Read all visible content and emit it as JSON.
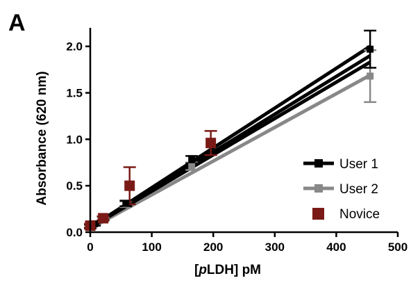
{
  "panel_label": "A",
  "chart_data": {
    "type": "line",
    "xlabel_prefix": "[",
    "xlabel_italic": "p",
    "xlabel_suffix": "LDH] pM",
    "ylabel": "Absorbance (620 nm)",
    "xlim": [
      0,
      500
    ],
    "ylim": [
      0,
      2.2
    ],
    "xticks": [
      0,
      100,
      200,
      300,
      400,
      500
    ],
    "xtick_labels": [
      "0",
      "100",
      "200",
      "300",
      "400",
      "500"
    ],
    "yticks": [
      0.0,
      0.5,
      1.0,
      1.5,
      2.0
    ],
    "ytick_labels": [
      "0.0",
      "0.5",
      "1.0",
      "1.5",
      "2.0"
    ],
    "grid": false,
    "legend_position": "bottom-right",
    "series": [
      {
        "name": "User 1",
        "color": "#000000",
        "marker": "square",
        "points": [
          {
            "x": 0,
            "y": 0.06,
            "err": 0.02
          },
          {
            "x": 7,
            "y": 0.09,
            "err": 0.02
          },
          {
            "x": 21,
            "y": 0.15,
            "err": 0.02
          },
          {
            "x": 58,
            "y": 0.31,
            "err": 0.03
          },
          {
            "x": 165,
            "y": 0.78,
            "err": 0.04
          },
          {
            "x": 455,
            "y": 1.97,
            "err": 0.2
          }
        ],
        "fit_lines": [
          {
            "x0": 0,
            "y0": 0.05,
            "x1": 455,
            "y1": 2.0
          },
          {
            "x0": 0,
            "y0": 0.05,
            "x1": 455,
            "y1": 1.9
          },
          {
            "x0": 0,
            "y0": 0.05,
            "x1": 455,
            "y1": 1.83
          }
        ]
      },
      {
        "name": "User 2",
        "color": "#888888",
        "marker": "square",
        "points": [
          {
            "x": 0,
            "y": 0.07,
            "err": 0.02
          },
          {
            "x": 21,
            "y": 0.14,
            "err": 0.02
          },
          {
            "x": 58,
            "y": 0.3,
            "err": 0.03
          },
          {
            "x": 165,
            "y": 0.71,
            "err": 0.04
          },
          {
            "x": 455,
            "y": 1.68,
            "err": 0.28
          }
        ],
        "fit_lines": [
          {
            "x0": 0,
            "y0": 0.04,
            "x1": 455,
            "y1": 1.69
          }
        ]
      },
      {
        "name": "Novice",
        "color": "#7a1a16",
        "marker": "square",
        "points": [
          {
            "x": 0,
            "y": 0.07,
            "err": 0.02
          },
          {
            "x": 21,
            "y": 0.15,
            "err": 0.02
          },
          {
            "x": 64,
            "y": 0.5,
            "err": 0.2
          },
          {
            "x": 196,
            "y": 0.96,
            "err": 0.13
          }
        ],
        "fit_lines": []
      }
    ]
  }
}
